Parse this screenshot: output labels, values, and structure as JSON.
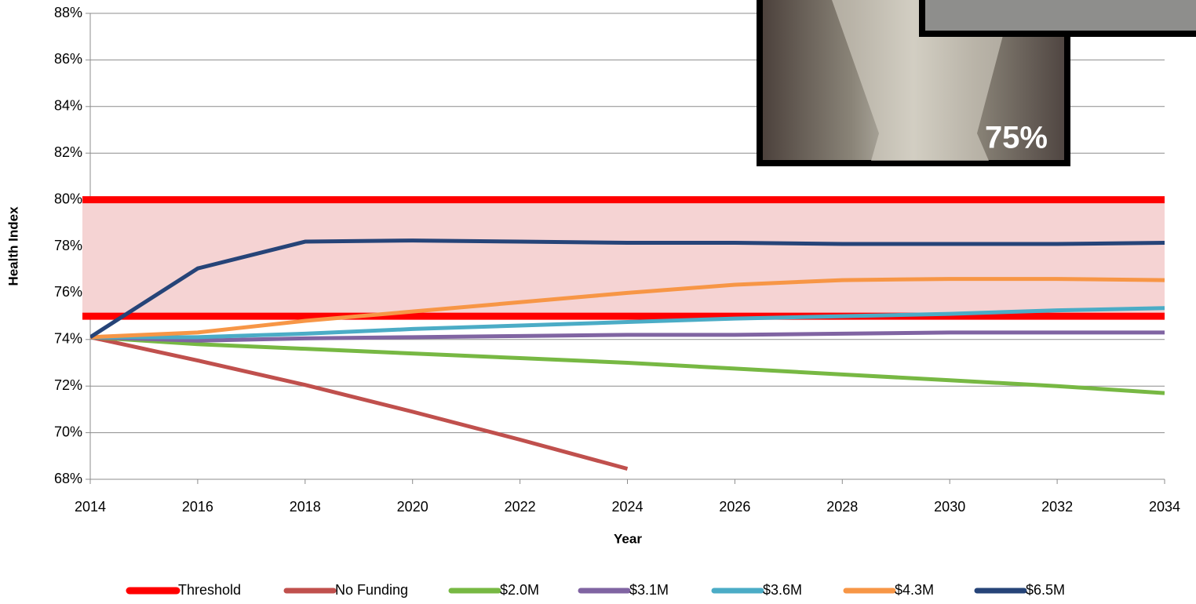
{
  "chart_data": {
    "type": "line",
    "x_label": "Year",
    "y_label": "Health Index",
    "x": [
      2014,
      2016,
      2018,
      2020,
      2022,
      2024,
      2026,
      2028,
      2030,
      2032,
      2034
    ],
    "xlim": [
      2014,
      2034
    ],
    "xticks": [
      2014,
      2016,
      2018,
      2020,
      2022,
      2024,
      2026,
      2028,
      2030,
      2032,
      2034
    ],
    "ylim": [
      68,
      88
    ],
    "yticks": [
      {
        "value": 68,
        "label": "68%"
      },
      {
        "value": 70,
        "label": "70%"
      },
      {
        "value": 72,
        "label": "72%"
      },
      {
        "value": 74,
        "label": "74%"
      },
      {
        "value": 76,
        "label": "76%"
      },
      {
        "value": 78,
        "label": "78%"
      },
      {
        "value": 80,
        "label": "80%"
      },
      {
        "value": 82,
        "label": "82%"
      },
      {
        "value": 84,
        "label": "84%"
      },
      {
        "value": 86,
        "label": "86%"
      },
      {
        "value": 88,
        "label": "88%"
      }
    ],
    "grid": true,
    "threshold": {
      "name": "Threshold",
      "color": "#ff0000",
      "band_color": "#f5d3d3",
      "values": [
        75,
        80
      ]
    },
    "series": [
      {
        "name": "No Funding",
        "color": "#c0504d",
        "values": [
          74.1,
          73.1,
          72.05,
          70.9,
          69.7,
          68.45,
          null,
          null,
          null,
          null,
          null
        ]
      },
      {
        "name": "$2.0M",
        "color": "#77b843",
        "values": [
          74.1,
          73.8,
          73.6,
          73.4,
          73.2,
          73.0,
          72.75,
          72.5,
          72.25,
          72.0,
          71.7
        ]
      },
      {
        "name": "$3.1M",
        "color": "#8064a2",
        "values": [
          74.1,
          73.95,
          74.05,
          74.1,
          74.15,
          74.2,
          74.2,
          74.25,
          74.3,
          74.3,
          74.3
        ]
      },
      {
        "name": "$3.6M",
        "color": "#4bacc6",
        "values": [
          74.1,
          74.1,
          74.25,
          74.45,
          74.6,
          74.75,
          74.9,
          75.0,
          75.1,
          75.25,
          75.35
        ]
      },
      {
        "name": "$4.3M",
        "color": "#f79646",
        "values": [
          74.1,
          74.3,
          74.8,
          75.2,
          75.6,
          76.0,
          76.35,
          76.55,
          76.6,
          76.6,
          76.55
        ]
      },
      {
        "name": "$6.5M",
        "color": "#264478",
        "values": [
          74.1,
          77.05,
          78.2,
          78.25,
          78.2,
          78.15,
          78.15,
          78.1,
          78.1,
          78.1,
          78.15
        ]
      }
    ],
    "inset_label": "75%"
  }
}
